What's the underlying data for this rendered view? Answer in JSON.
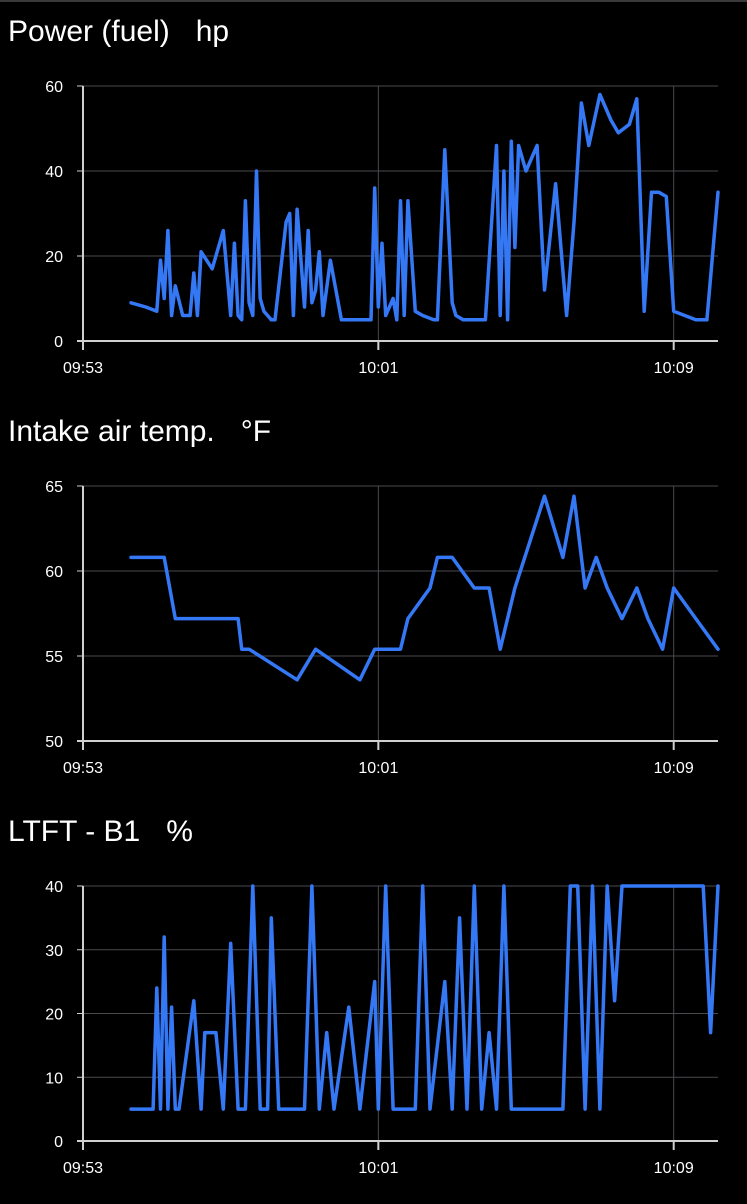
{
  "colors": {
    "background": "#000000",
    "series": "#3478f6",
    "grid": "#4a4a4e",
    "axis": "#d0d0d0",
    "text": "#ffffff"
  },
  "chart_data": [
    {
      "type": "line",
      "title": "Power (fuel)",
      "unit": "hp",
      "xlim": [
        "09:53",
        "10:10.2"
      ],
      "x_ticks": [
        "09:53",
        "10:01",
        "10:09"
      ],
      "ylim": [
        0,
        60
      ],
      "y_ticks": [
        0,
        20,
        40,
        60
      ],
      "grid": true,
      "series": [
        {
          "x": [
            "09:54.3",
            "09:54.7",
            "09:55.0",
            "09:55.1",
            "09:55.2",
            "09:55.3",
            "09:55.4",
            "09:55.5",
            "09:55.7",
            "09:55.9",
            "09:56.0",
            "09:56.1",
            "09:56.2",
            "09:56.5",
            "09:56.8",
            "09:57.0",
            "09:57.1",
            "09:57.2",
            "09:57.3",
            "09:57.4",
            "09:57.5",
            "09:57.6",
            "09:57.7",
            "09:57.8",
            "09:57.9",
            "09:58.0",
            "09:58.1",
            "09:58.2",
            "09:58.5",
            "09:58.6",
            "09:58.7",
            "09:58.8",
            "09:59.0",
            "09:59.1",
            "09:59.2",
            "09:59.3",
            "09:59.4",
            "09:59.5",
            "09:59.7",
            "10:00.0",
            "10:00.4",
            "10:00.6",
            "10:00.7",
            "10:00.8",
            "10:00.9",
            "10:01.0",
            "10:01.1",
            "10:01.2",
            "10:01.4",
            "10:01.5",
            "10:01.6",
            "10:01.7",
            "10:01.8",
            "10:02.0",
            "10:02.2",
            "10:02.5",
            "10:02.6",
            "10:02.8",
            "10:03.0",
            "10:03.1",
            "10:03.3",
            "10:03.5",
            "10:03.7",
            "10:03.9",
            "10:04.2",
            "10:04.3",
            "10:04.4",
            "10:04.5",
            "10:04.6",
            "10:04.7",
            "10:04.8",
            "10:05.0",
            "10:05.3",
            "10:05.5",
            "10:05.8",
            "10:06.1",
            "10:06.3",
            "10:06.5",
            "10:06.7",
            "10:07.0",
            "10:07.3",
            "10:07.5",
            "10:07.8",
            "10:08.0",
            "10:08.2",
            "10:08.4",
            "10:08.6",
            "10:08.8",
            "10:09.0",
            "10:09.3",
            "10:09.6",
            "10:09.9",
            "10:10.2"
          ],
          "y": [
            9,
            8,
            7,
            19,
            10,
            26,
            6,
            13,
            6,
            6,
            16,
            6,
            21,
            17,
            26,
            6,
            23,
            6,
            5,
            33,
            9,
            6,
            40,
            10,
            7,
            6,
            5,
            5,
            28,
            30,
            6,
            31,
            8,
            26,
            9,
            12,
            21,
            6,
            19,
            5,
            5,
            5,
            5,
            5,
            36,
            8,
            23,
            6,
            10,
            5,
            33,
            6,
            33,
            7,
            6,
            5,
            5,
            45,
            9,
            6,
            5,
            5,
            5,
            5,
            46,
            6,
            40,
            5,
            47,
            22,
            46,
            40,
            46,
            12,
            37,
            6,
            28,
            56,
            46,
            58,
            52,
            49,
            51,
            57,
            7,
            35,
            35,
            34,
            7,
            6,
            5,
            5,
            35
          ]
        }
      ]
    },
    {
      "type": "line",
      "title": "Intake air temp.",
      "unit": "°F",
      "xlim": [
        "09:53",
        "10:10.2"
      ],
      "x_ticks": [
        "09:53",
        "10:01",
        "10:09"
      ],
      "ylim": [
        50,
        65
      ],
      "y_ticks": [
        50,
        55,
        60,
        65
      ],
      "grid": true,
      "series": [
        {
          "x": [
            "09:54.3",
            "09:55.2",
            "09:55.5",
            "09:56.5",
            "09:57.2",
            "09:57.3",
            "09:57.5",
            "09:58.8",
            "09:59.3",
            "10:00.5",
            "10:00.9",
            "10:01.2",
            "10:01.6",
            "10:01.8",
            "10:02.4",
            "10:02.6",
            "10:03.0",
            "10:03.6",
            "10:04.0",
            "10:04.3",
            "10:04.7",
            "10:05.5",
            "10:06.0",
            "10:06.3",
            "10:06.6",
            "10:06.9",
            "10:07.2",
            "10:07.6",
            "10:08.0",
            "10:08.3",
            "10:08.7",
            "10:09.0",
            "10:09.6",
            "10:10.2"
          ],
          "y": [
            60.8,
            60.8,
            57.2,
            57.2,
            57.2,
            55.4,
            55.4,
            53.6,
            55.4,
            53.6,
            55.4,
            55.4,
            55.4,
            57.2,
            59.0,
            60.8,
            60.8,
            59.0,
            59.0,
            55.4,
            59.0,
            64.4,
            60.8,
            64.4,
            59.0,
            60.8,
            59.0,
            57.2,
            59.0,
            57.2,
            55.4,
            59.0,
            57.2,
            55.4
          ]
        }
      ]
    },
    {
      "type": "line",
      "title": "LTFT - B1",
      "unit": "%",
      "xlim": [
        "09:53",
        "10:10.2"
      ],
      "x_ticks": [
        "09:53",
        "10:01",
        "10:09"
      ],
      "ylim": [
        0,
        40
      ],
      "y_ticks": [
        0,
        10,
        20,
        30,
        40
      ],
      "grid": true,
      "series": [
        {
          "x": [
            "09:54.3",
            "09:54.9",
            "09:55.0",
            "09:55.1",
            "09:55.2",
            "09:55.3",
            "09:55.4",
            "09:55.5",
            "09:55.6",
            "09:56.0",
            "09:56.2",
            "09:56.3",
            "09:56.6",
            "09:56.8",
            "09:57.0",
            "09:57.2",
            "09:57.4",
            "09:57.6",
            "09:57.8",
            "09:58.0",
            "09:58.1",
            "09:58.3",
            "09:58.6",
            "09:59.0",
            "09:59.2",
            "09:59.4",
            "09:59.6",
            "09:59.8",
            "10:00.2",
            "10:00.5",
            "10:00.9",
            "10:01.0",
            "10:01.2",
            "10:01.4",
            "10:01.6",
            "10:01.8",
            "10:02.0",
            "10:02.2",
            "10:02.4",
            "10:02.8",
            "10:03.0",
            "10:03.2",
            "10:03.4",
            "10:03.6",
            "10:03.8",
            "10:04.0",
            "10:04.2",
            "10:04.4",
            "10:04.6",
            "10:05.0",
            "10:05.5",
            "10:06.0",
            "10:06.2",
            "10:06.4",
            "10:06.6",
            "10:06.8",
            "10:07.0",
            "10:07.2",
            "10:07.4",
            "10:07.6",
            "10:08.0",
            "10:08.6",
            "10:09.2",
            "10:09.8",
            "10:10.0",
            "10:10.2"
          ],
          "y": [
            5,
            5,
            24,
            5,
            32,
            5,
            21,
            5,
            5,
            22,
            5,
            17,
            17,
            5,
            31,
            5,
            5,
            40,
            5,
            5,
            35,
            5,
            5,
            5,
            40,
            5,
            17,
            5,
            21,
            5,
            25,
            5,
            40,
            5,
            5,
            5,
            5,
            40,
            5,
            25,
            5,
            35,
            5,
            40,
            5,
            17,
            5,
            40,
            5,
            5,
            5,
            5,
            40,
            40,
            5,
            40,
            5,
            40,
            22,
            40,
            40,
            40,
            40,
            40,
            17,
            40
          ]
        }
      ]
    }
  ]
}
